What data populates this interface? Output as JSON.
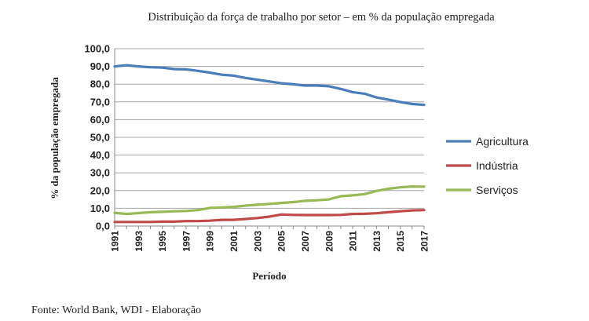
{
  "source_note": "Fonte: World Bank, WDI - Elaboração",
  "chart_data": {
    "type": "line",
    "title": "Distribuição da força de trabalho por setor – em % da população empregada",
    "xlabel": "Período",
    "ylabel": "% da população empregada",
    "ylim": [
      0,
      100
    ],
    "yticks": [
      "0,0",
      "10,0",
      "20,0",
      "30,0",
      "40,0",
      "50,0",
      "60,0",
      "70,0",
      "80,0",
      "90,0",
      "100,0"
    ],
    "xtick_labels": [
      "1991",
      "1993",
      "1995",
      "1997",
      "1999",
      "2001",
      "2003",
      "2005",
      "2007",
      "2009",
      "2011",
      "2013",
      "2015",
      "2017"
    ],
    "x": [
      1991,
      1992,
      1993,
      1994,
      1995,
      1996,
      1997,
      1998,
      1999,
      2000,
      2001,
      2002,
      2003,
      2004,
      2005,
      2006,
      2007,
      2008,
      2009,
      2010,
      2011,
      2012,
      2013,
      2014,
      2015,
      2016,
      2017
    ],
    "grid": true,
    "legend_position": "right",
    "series": [
      {
        "name": "Agricultura",
        "color": "#4a7ebb",
        "values": [
          90.0,
          90.6,
          90.0,
          89.5,
          89.3,
          88.5,
          88.3,
          87.5,
          86.5,
          85.3,
          84.8,
          83.5,
          82.5,
          81.5,
          80.5,
          79.9,
          79.2,
          79.2,
          78.8,
          77.3,
          75.5,
          74.6,
          72.5,
          71.3,
          69.9,
          68.8,
          68.3
        ]
      },
      {
        "name": "Indústria",
        "color": "#be4b48",
        "values": [
          2.3,
          2.3,
          2.3,
          2.3,
          2.5,
          2.5,
          2.8,
          2.8,
          3.0,
          3.5,
          3.5,
          4.0,
          4.5,
          5.3,
          6.5,
          6.3,
          6.2,
          6.2,
          6.2,
          6.3,
          6.8,
          6.9,
          7.2,
          7.8,
          8.3,
          8.8,
          9.0
        ]
      },
      {
        "name": "Serviços",
        "color": "#98b954",
        "values": [
          7.5,
          6.8,
          7.3,
          7.8,
          8.0,
          8.3,
          8.5,
          9.0,
          10.2,
          10.5,
          10.8,
          11.5,
          12.0,
          12.5,
          13.0,
          13.5,
          14.2,
          14.5,
          15.0,
          16.8,
          17.3,
          18.0,
          19.8,
          21.0,
          21.8,
          22.3,
          22.2
        ]
      }
    ]
  }
}
